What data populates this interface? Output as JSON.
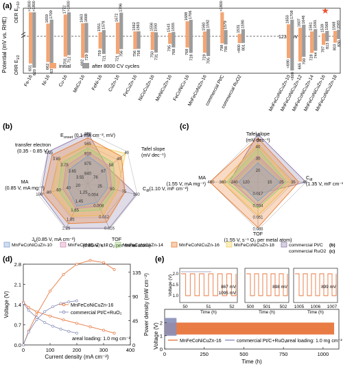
{
  "panel_labels": {
    "a": "(a)",
    "b": "(b)",
    "c": "(c)",
    "d": "(d)",
    "e": "(e)"
  },
  "chart_data": [
    {
      "id": "a",
      "type": "bar",
      "ylabel": "Potential (mV vs. RHE)",
      "oer_label": "OER E",
      "oer_sub": "j=10",
      "orr_label": "ORR E",
      "orr_sub": "1/2",
      "ref_line_label": "1230 mV",
      "ref_line_value": 1230,
      "legend": [
        "initial",
        "after 8000 CV cycles"
      ],
      "categories": [
        "Fe-16",
        "Ni-16",
        "Cu-16",
        "MnCo-16",
        "FeNi-16",
        "CuZn-16",
        "FeCuZn-16",
        "NiCoCuZn-16",
        "MnNiCuZn-16",
        "FeCoNiCu-16",
        "MnFeCoNiZn-16",
        "commercial Pt/C",
        "commercial RuO2",
        "MnFeCoNiCuZn-10",
        "MnFeCoNiCuZn-12",
        "MnFeCoNiCuZn-14",
        "MnFeCoNiCuZn-16",
        "MnFeCoNiCuZn-18"
      ],
      "oer_initial": [
        ">1800",
        1659,
        1772,
        1663,
        1551,
        1672,
        1562,
        1556,
        1543,
        1688,
        1560,
        ">1800",
        1531,
        1650,
        1607,
        1561,
        1539,
        1568
      ],
      "oer_after": [
        ">1800",
        1709,
        ">1800",
        1668,
        1578,
        1796,
        1563,
        1550,
        1555,
        1706,
        1592,
        1579,
        1590,
        1708,
        1646,
        1591,
        1568,
        1583
      ],
      "orr_initial": [
        651,
        662,
        701,
        692,
        759,
        721,
        756,
        750,
        795,
        768,
        729,
        798,
        ">800",
        "<690",
        665,
        728,
        787,
        803
      ],
      "orr_after": [
        620,
        637,
        712,
        729,
        721,
        756,
        758,
        731,
        768,
        728,
        705,
        790,
        801,
        "<600",
        700,
        744,
        813,
        830
      ],
      "highlight": "MnFeCoNiCuZn-16",
      "star": "★"
    },
    {
      "id": "b",
      "type": "radar",
      "axes": [
        {
          "label": "E",
          "sub": "onset",
          "unit": " (0.1 mA cm⁻², mV)",
          "ticks": [
            "980",
            "945",
            "910",
            "875",
            "840"
          ]
        },
        {
          "label": "Tafel slope",
          "unit": "(mV dec⁻¹)",
          "ticks": [
            "40",
            "49",
            "58",
            "67",
            "76"
          ]
        },
        {
          "label": "C",
          "sub": "dl",
          "unit": "(1.10 V, mF cm⁻²)",
          "ticks": [
            "100",
            "75",
            "50",
            "25"
          ]
        },
        {
          "label": "TOF",
          "unit": "(0.85 V, s⁻¹ O₂ per metal atom)",
          "ticks": [
            "0.016",
            "0.012",
            "0.008",
            "0.004"
          ]
        },
        {
          "label": "J",
          "sub": "k",
          "unit": "(0.85 V, mA cm⁻²)",
          "ticks": [
            "2.25",
            "1.85",
            "1.65",
            "1.45",
            "1.25"
          ]
        },
        {
          "label": "MA",
          "unit": "(0.85 V, mA mg⁻¹)",
          "ticks": [
            "100",
            "80",
            "60",
            "40",
            "20"
          ]
        },
        {
          "label": "transfer electron",
          "unit": "(0.35 - 0.85 V)",
          "ticks": [
            "3.95",
            "3.85",
            "3.75",
            "3.65",
            "3.55"
          ]
        }
      ],
      "series": [
        {
          "name": "MnFeCoNiCuZn-10",
          "color": "#7f9fd0",
          "values": [
            0.55,
            0.45,
            0.4,
            0.42,
            0.5,
            0.4,
            0.45
          ]
        },
        {
          "name": "MnFeCoNiCuZn-12",
          "color": "#d58bb5",
          "values": [
            0.62,
            0.55,
            0.48,
            0.5,
            0.55,
            0.5,
            0.55
          ]
        },
        {
          "name": "MnFeCoNiCuZn-14",
          "color": "#9ad07a",
          "values": [
            0.7,
            0.65,
            0.55,
            0.58,
            0.62,
            0.6,
            0.65
          ]
        },
        {
          "name": "MnFeCoNiCuZn-16",
          "color": "#e87a2f",
          "values": [
            0.9,
            0.85,
            0.75,
            0.85,
            0.88,
            0.9,
            0.9
          ]
        },
        {
          "name": "MnFeCoNiCuZn-18",
          "color": "#f0cf55",
          "values": [
            0.78,
            0.95,
            0.6,
            0.7,
            0.72,
            0.72,
            0.75
          ]
        },
        {
          "name": "commercial Pt/C",
          "color": "#8d7ca8",
          "values": [
            1.0,
            0.5,
            0.98,
            0.98,
            0.98,
            0.95,
            1.0
          ]
        }
      ]
    },
    {
      "id": "c",
      "type": "radar",
      "axes": [
        {
          "label": "Tafel slope",
          "unit": "(mV dec⁻¹)",
          "ticks": [
            "50",
            "40",
            "30",
            "20"
          ]
        },
        {
          "label": "C",
          "sub": "dl",
          "unit": "(1.35 V, mF cm⁻²)",
          "ticks": [
            "45",
            "35",
            "25",
            "15"
          ]
        },
        {
          "label": "TOF",
          "unit": "(1.55 V, s⁻¹ O₂ per metal atom)",
          "ticks": [
            "0.088",
            "0.051",
            "0.034",
            "0.017"
          ]
        },
        {
          "label": "MA",
          "unit": "(1.55 V, mA mg⁻¹)",
          "ticks": [
            "480",
            "360",
            "240",
            "120"
          ]
        }
      ],
      "series": [
        {
          "name": "MnFeCoNiCuZn-10",
          "color": "#7f9fd0",
          "values": [
            0.4,
            0.45,
            0.4,
            0.4
          ]
        },
        {
          "name": "MnFeCoNiCuZn-12",
          "color": "#d58bb5",
          "values": [
            0.55,
            0.55,
            0.5,
            0.55
          ]
        },
        {
          "name": "MnFeCoNiCuZn-14",
          "color": "#9ad07a",
          "values": [
            0.7,
            0.6,
            0.55,
            0.65
          ]
        },
        {
          "name": "MnFeCoNiCuZn-16",
          "color": "#e87a2f",
          "values": [
            0.92,
            0.85,
            0.95,
            1.0
          ]
        },
        {
          "name": "MnFeCoNiCuZn-18",
          "color": "#f0cf55",
          "values": [
            0.8,
            0.7,
            0.7,
            0.75
          ]
        },
        {
          "name": "commercial RuO2",
          "color": "#8d7ca8",
          "values": [
            1.0,
            1.0,
            0.25,
            0.6
          ]
        }
      ]
    },
    {
      "id": "d",
      "type": "line",
      "xlabel": "Current density (mA cm⁻²)",
      "ylabel": "Voltage (V)",
      "y2label": "Power density (mW cm⁻²)",
      "xlim": [
        0,
        400
      ],
      "ylim": [
        0,
        2.8
      ],
      "y2lim": [
        0,
        150
      ],
      "xticks": [
        "0",
        "100",
        "200",
        "300",
        "400"
      ],
      "yticks": [
        "0.0",
        "0.7",
        "1.4",
        "2.1",
        "2.8"
      ],
      "y2ticks": [
        "0",
        "45",
        "90",
        "135"
      ],
      "annotation": "areal loading: 1.0 mg cm⁻²",
      "series": [
        {
          "name": "MnFeCoNiCuZn-16",
          "color": "#e8743b",
          "voltage": [
            [
              0,
              1.48
            ],
            [
              20,
              1.3
            ],
            [
              50,
              1.15
            ],
            [
              100,
              1.0
            ],
            [
              150,
              0.87
            ],
            [
              200,
              0.75
            ],
            [
              250,
              0.63
            ],
            [
              300,
              0.51
            ],
            [
              340,
              0.41
            ]
          ],
          "power": [
            [
              0,
              0
            ],
            [
              20,
              26
            ],
            [
              50,
              57
            ],
            [
              100,
              100
            ],
            [
              150,
              131
            ],
            [
              200,
              150
            ],
            [
              250,
              157
            ],
            [
              300,
              153
            ],
            [
              340,
              140
            ]
          ]
        },
        {
          "name": "commercial Pt/C+RuO₂",
          "color": "#8a8fb8",
          "voltage": [
            [
              0,
              1.45
            ],
            [
              20,
              1.2
            ],
            [
              50,
              0.95
            ],
            [
              80,
              0.78
            ],
            [
              110,
              0.65
            ],
            [
              140,
              0.55
            ],
            [
              170,
              0.47
            ],
            [
              200,
              0.41
            ]
          ],
          "power": [
            [
              0,
              0
            ],
            [
              20,
              24
            ],
            [
              50,
              47
            ],
            [
              80,
              62
            ],
            [
              110,
              71
            ],
            [
              140,
              77
            ],
            [
              170,
              80
            ],
            [
              200,
              82
            ]
          ]
        }
      ]
    },
    {
      "id": "e",
      "type": "line",
      "xlabel": "Time (h)",
      "ylabel": "Voltage (V)",
      "xlim": [
        0,
        1100
      ],
      "ylim": [
        0,
        3
      ],
      "xticks": [
        "0",
        "250",
        "500",
        "750",
        "1000"
      ],
      "yticks": [
        "0",
        "1",
        "2"
      ],
      "annotation": "areal loading: 1.0 mg cm⁻²",
      "series": [
        {
          "name": "MnFeCoNiCuZn-16",
          "color": "#e8743b"
        },
        {
          "name": "commercial Pt/C+RuO₂",
          "color": "#8a8fb8"
        }
      ],
      "pt_end_hour": 75,
      "charge_v": 2.0,
      "discharge_v": 1.1,
      "insets": [
        {
          "xticks": [
            "50",
            "51",
            "52"
          ],
          "xlabel": "Time (h)",
          "ylabel": "Voltage (V)",
          "yticks": [
            "2.0",
            "1.5",
            "1.0"
          ],
          "gap_mv": "867 mV",
          "gap2_mv": "1095 mV"
        },
        {
          "xticks": [
            "500",
            "501",
            "502"
          ],
          "xlabel": "Time (h)",
          "gap_mv": "898 mV"
        },
        {
          "xticks": [
            "1005",
            "1006",
            "1007"
          ],
          "xlabel": "Time (h)",
          "gap_mv": "899 mV"
        }
      ]
    }
  ]
}
